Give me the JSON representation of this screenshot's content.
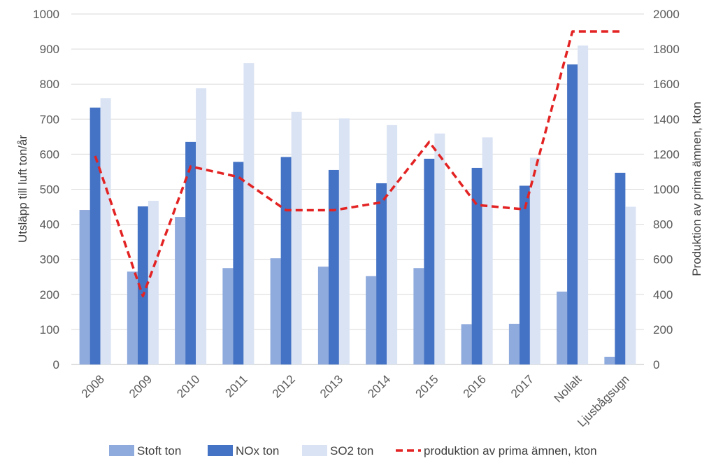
{
  "chart_data": {
    "type": "bar",
    "categories": [
      "2008",
      "2009",
      "2010",
      "2011",
      "2012",
      "2013",
      "2014",
      "2015",
      "2016",
      "2017",
      "Nollalt",
      "Ljusbågsugn"
    ],
    "series": [
      {
        "name": "Stoft ton",
        "type": "bar",
        "axis": "left",
        "color": "#8FAADC",
        "values": [
          441,
          265,
          421,
          275,
          303,
          279,
          252,
          275,
          115,
          116,
          208,
          22
        ]
      },
      {
        "name": "NOx ton",
        "type": "bar",
        "axis": "left",
        "color": "#4472C4",
        "values": [
          733,
          451,
          635,
          578,
          592,
          555,
          517,
          587,
          561,
          510,
          856,
          547
        ]
      },
      {
        "name": "SO2 ton",
        "type": "bar",
        "axis": "left",
        "color": "#DAE3F3",
        "values": [
          760,
          467,
          788,
          860,
          721,
          702,
          683,
          659,
          648,
          590,
          910,
          450
        ]
      },
      {
        "name": "produktion av prima ämnen, kton",
        "type": "line",
        "axis": "right",
        "color": "#E32323",
        "style": "dashed",
        "values": [
          1190,
          390,
          1130,
          1070,
          880,
          880,
          925,
          1270,
          910,
          885,
          1900,
          1900
        ]
      }
    ],
    "ylabel": "Utsläpp till luft ton/år",
    "y2label": "Produktion av prima ämnen, kton",
    "ylim": [
      0,
      1000
    ],
    "y2lim": [
      0,
      2000
    ],
    "yticks": [
      "0",
      "100",
      "200",
      "300",
      "400",
      "500",
      "600",
      "700",
      "800",
      "900",
      "1000"
    ],
    "y2ticks": [
      "0",
      "200",
      "400",
      "600",
      "800",
      "1000",
      "1200",
      "1400",
      "1600",
      "1800",
      "2000"
    ],
    "grid": true,
    "legend_position": "bottom"
  }
}
